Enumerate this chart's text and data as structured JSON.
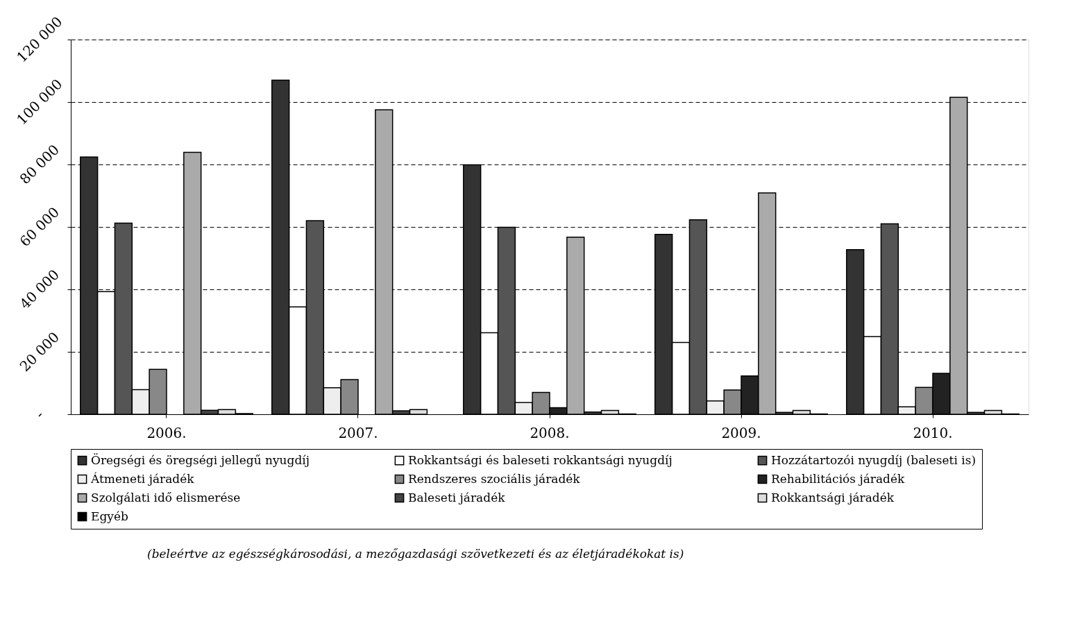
{
  "chart_data": {
    "type": "bar",
    "categories": [
      "2006.",
      "2007.",
      "2008.",
      "2009.",
      "2010."
    ],
    "series": [
      {
        "name": "Öregségi és öregségi jellegű nyugdíj",
        "color": "#333333",
        "values": [
          82400,
          107000,
          79900,
          57600,
          52700
        ]
      },
      {
        "name": "Rokkantsági és baleseti rokkantsági nyugdíj",
        "color": "#ffffff",
        "values": [
          39300,
          34400,
          26100,
          23000,
          24900
        ]
      },
      {
        "name": "Hozzátartozói nyugdíj (baleseti is)",
        "color": "#555555",
        "values": [
          61200,
          62000,
          59900,
          62300,
          61000
        ]
      },
      {
        "name": "Átmeneti járadék",
        "color": "#eeeeee",
        "values": [
          7900,
          8500,
          3800,
          4300,
          2400
        ]
      },
      {
        "name": "Rendszeres szociális járadék",
        "color": "#888888",
        "values": [
          14400,
          11100,
          7000,
          7800,
          8600
        ]
      },
      {
        "name": "Rehabilitációs járadék",
        "color": "#222222",
        "values": [
          null,
          null,
          2100,
          12300,
          13100
        ]
      },
      {
        "name": "Szolgálati idő elismerése",
        "color": "#aaaaaa",
        "values": [
          83900,
          97500,
          56700,
          70900,
          101500
        ]
      },
      {
        "name": "Baleseti járadék",
        "color": "#444444",
        "values": [
          1300,
          1100,
          700,
          600,
          600
        ]
      },
      {
        "name": "Rokkantsági járadék",
        "color": "#dddddd",
        "values": [
          1500,
          1500,
          1200,
          1200,
          1200
        ]
      },
      {
        "name": "Egyéb",
        "color": "#000000",
        "values": [
          200,
          null,
          100,
          100,
          100
        ]
      }
    ],
    "ylim": [
      0,
      120000
    ],
    "yticks": [
      {
        "value": 0,
        "label": "-"
      },
      {
        "value": 20000,
        "label": "20 000"
      },
      {
        "value": 40000,
        "label": "40 000"
      },
      {
        "value": 60000,
        "label": "60 000"
      },
      {
        "value": 80000,
        "label": "80 000"
      },
      {
        "value": 100000,
        "label": "100 000"
      },
      {
        "value": 120000,
        "label": "120 000"
      }
    ],
    "grid": "y",
    "legend": "bottom",
    "annotations": [
      "(beleértve az egészségkárosodási, a mezőgazdasági szövetkezeti és az életjáradékokat is)"
    ]
  }
}
